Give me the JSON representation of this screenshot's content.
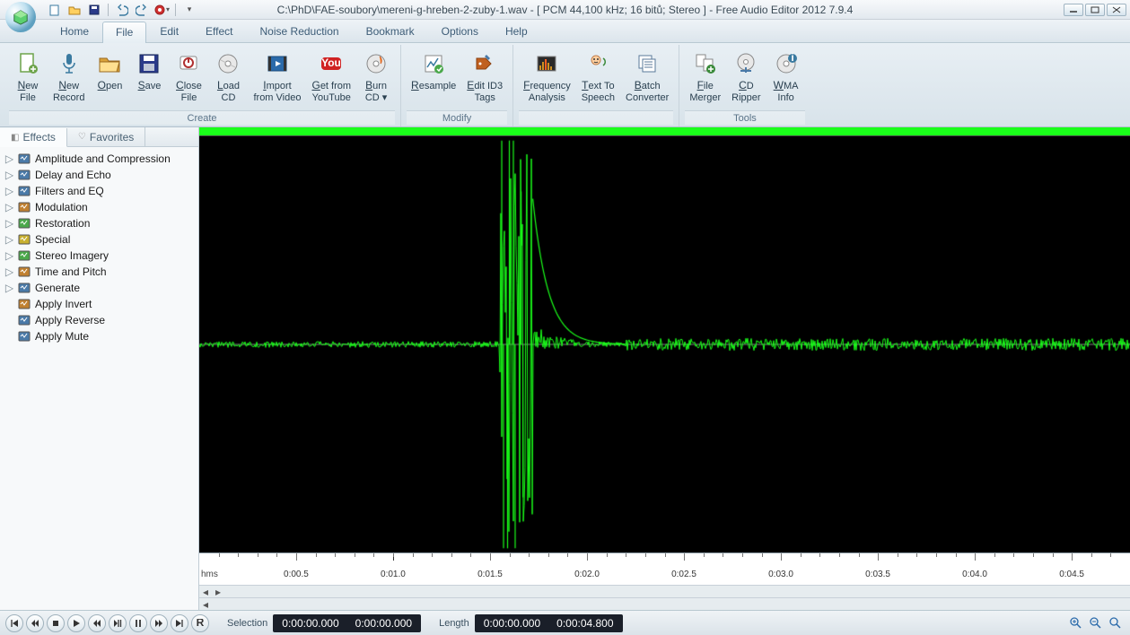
{
  "title": "C:\\PhD\\FAE-soubory\\mereni-g-hreben-2-zuby-1.wav - [ PCM 44,100 kHz; 16 bitů; Stereo ] - Free Audio Editor 2012 7.9.4",
  "menutabs": [
    "Home",
    "File",
    "Edit",
    "Effect",
    "Noise Reduction",
    "Bookmark",
    "Options",
    "Help"
  ],
  "active_menutab": 1,
  "ribbon_groups": [
    {
      "label": "Create",
      "buttons": [
        {
          "name": "new-file",
          "label": "New\nFile",
          "icon": "doc",
          "color": "#6da34a"
        },
        {
          "name": "new-record",
          "label": "New\nRecord",
          "icon": "mic",
          "color": "#3a7aa0"
        },
        {
          "name": "open",
          "label": "Open",
          "icon": "folder",
          "color": "#d9a23a"
        },
        {
          "name": "save",
          "label": "Save",
          "icon": "disk",
          "color": "#2a3a8a"
        },
        {
          "name": "close-file",
          "label": "Close\nFile",
          "icon": "power",
          "color": "#b03030"
        },
        {
          "name": "load-cd",
          "label": "Load\nCD",
          "icon": "cd",
          "color": "#888"
        },
        {
          "name": "import-video",
          "label": "Import\nfrom Video",
          "icon": "video",
          "color": "#2a6aaa"
        },
        {
          "name": "get-youtube",
          "label": "Get from\nYouTube",
          "icon": "yt",
          "color": "#d02222"
        },
        {
          "name": "burn-cd",
          "label": "Burn\nCD ▾",
          "icon": "cdfire",
          "color": "#888"
        }
      ]
    },
    {
      "label": "Modify",
      "buttons": [
        {
          "name": "resample",
          "label": "Resample",
          "icon": "resample",
          "color": "#3a7aa0"
        },
        {
          "name": "edit-id3",
          "label": "Edit ID3\nTags",
          "icon": "tags",
          "color": "#c06020"
        }
      ]
    },
    {
      "label": "",
      "buttons": [
        {
          "name": "freq-analysis",
          "label": "Frequency\nAnalysis",
          "icon": "freq",
          "color": "#d09020"
        },
        {
          "name": "tts",
          "label": "Text To\nSpeech",
          "icon": "tts",
          "color": "#3a8a3a"
        },
        {
          "name": "batch",
          "label": "Batch\nConverter",
          "icon": "batch",
          "color": "#5a7a9a"
        }
      ]
    },
    {
      "label": "Tools",
      "buttons": [
        {
          "name": "file-merger",
          "label": "File\nMerger",
          "icon": "merger",
          "color": "#3a8a3a"
        },
        {
          "name": "cd-ripper",
          "label": "CD\nRipper",
          "icon": "ripper",
          "color": "#888"
        },
        {
          "name": "wma-info",
          "label": "WMA\nInfo",
          "icon": "wma",
          "color": "#3a7aa0"
        }
      ]
    }
  ],
  "sidebar_tabs": [
    "Effects",
    "Favorites"
  ],
  "active_sidebar_tab": 0,
  "tree": [
    {
      "label": "Amplitude and Compression",
      "icon": "#4a7aa8",
      "expand": true
    },
    {
      "label": "Delay and Echo",
      "icon": "#4a7aa8",
      "expand": true
    },
    {
      "label": "Filters and EQ",
      "icon": "#4a7aa8",
      "expand": true
    },
    {
      "label": "Modulation",
      "icon": "#c08030",
      "expand": true
    },
    {
      "label": "Restoration",
      "icon": "#4aa84a",
      "expand": true
    },
    {
      "label": "Special",
      "icon": "#c8b030",
      "expand": true
    },
    {
      "label": "Stereo Imagery",
      "icon": "#4aa84a",
      "expand": true
    },
    {
      "label": "Time and Pitch",
      "icon": "#c08030",
      "expand": true
    },
    {
      "label": "Generate",
      "icon": "#4a7aa8",
      "expand": true
    },
    {
      "label": "Apply Invert",
      "icon": "#c08030",
      "expand": false
    },
    {
      "label": "Apply Reverse",
      "icon": "#4a7aa8",
      "expand": false
    },
    {
      "label": "Apply Mute",
      "icon": "#4a7aa8",
      "expand": false
    }
  ],
  "timeline": {
    "unit": "hms",
    "ticks": [
      "0:00.5",
      "0:01.0",
      "0:01.5",
      "0:02.0",
      "0:02.5",
      "0:03.0",
      "0:03.5",
      "0:04.0",
      "0:04.5"
    ],
    "total": 4.8
  },
  "waveform": {
    "color": "#1aff1a",
    "midline": "#808080",
    "noise_amp": 0.015,
    "event_start": 1.55,
    "event_end": 1.72,
    "spikes": [
      {
        "t": 1.56,
        "a": 1.0
      },
      {
        "t": 1.59,
        "a": -1.0
      },
      {
        "t": 1.62,
        "a": 1.0
      },
      {
        "t": 1.66,
        "a": 0.75
      }
    ],
    "decay_from": 1.72,
    "decay_to": 2.2,
    "decay_amp": 0.06,
    "post_noise_amp": 0.03
  },
  "status": {
    "selection_label": "Selection",
    "sel_from": "0:00:00.000",
    "sel_to": "0:00:00.000",
    "length_label": "Length",
    "len_from": "0:00:00.000",
    "len_to": "0:00:04.800"
  },
  "playback_buttons": [
    "skip-start",
    "step-back",
    "stop",
    "play",
    "rewind",
    "pause-toggle",
    "pause",
    "step-fwd",
    "skip-end",
    "record"
  ]
}
